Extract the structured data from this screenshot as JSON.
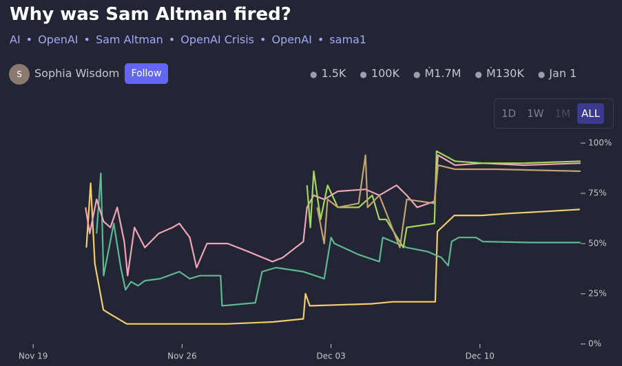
{
  "header": {
    "title": "Why was Sam Altman fired?",
    "tags": [
      "AI",
      "OpenAI",
      "Sam Altman",
      "OpenAI Crisis",
      "OpenAI",
      "sama1"
    ],
    "author": "Sophia Wisdom",
    "avatar": "S",
    "follow": "Follow",
    "stats": [
      "1.5K",
      "100K",
      "Ṁ1.7M",
      "Ṁ130K",
      "Jan 1"
    ]
  },
  "ranges": [
    "1D",
    "1W",
    "1M",
    "ALL"
  ],
  "chart_data": {
    "type": "line",
    "grid": false,
    "xlim": [
      -1.56,
      25.8
    ],
    "xticks": [
      {
        "value": 0,
        "label": "Nov 19"
      },
      {
        "value": 7,
        "label": "Nov 26"
      },
      {
        "value": 14,
        "label": "Dec 03"
      },
      {
        "value": 21,
        "label": "Dec 10"
      }
    ],
    "ylim": [
      0,
      100
    ],
    "yticks": [
      {
        "value": 0,
        "label": "0%"
      },
      {
        "value": 25,
        "label": "25%"
      },
      {
        "value": 50,
        "label": "50%"
      },
      {
        "value": 75,
        "label": "75%"
      },
      {
        "value": 100,
        "label": "100%"
      }
    ],
    "series": [
      {
        "color": "#f5cd6b",
        "x": [
          2.5,
          2.7,
          2.9,
          3.3,
          3.6,
          4.4,
          7.0,
          9.1,
          11.3,
          12.7,
          12.8,
          13.0,
          15.9,
          16.9,
          18.9,
          19.0,
          19.8,
          21.1,
          22.4,
          24.1,
          25.7
        ],
        "values": [
          48,
          80,
          40,
          17,
          15,
          10,
          10,
          10,
          11,
          12.5,
          25,
          19,
          20,
          21,
          21,
          56,
          64,
          64,
          65,
          66,
          67
        ]
      },
      {
        "color": "#5fb893",
        "x": [
          2.98,
          3.18,
          3.31,
          3.79,
          4.12,
          4.34,
          4.6,
          4.93,
          5.25,
          5.96,
          6.87,
          7.36,
          7.84,
          8.81,
          8.88,
          10.44,
          10.76,
          11.41,
          12.7,
          13.68,
          14.0,
          14.16,
          15.3,
          16.27,
          16.43,
          17.56,
          18.54,
          19.19,
          19.51,
          19.67,
          20.0,
          20.81,
          21.13,
          23.4,
          25.73
        ],
        "values": [
          55,
          85,
          34,
          60,
          38,
          27,
          31,
          29,
          31.5,
          32.5,
          36,
          32.5,
          34,
          34,
          19,
          20.5,
          36,
          38,
          36,
          32.5,
          53,
          50,
          44.5,
          41,
          53,
          48,
          46,
          43,
          39,
          51,
          53,
          53,
          51,
          50.5,
          50.5
        ]
      },
      {
        "color": "#f2a5b8",
        "x": [
          2.46,
          2.66,
          2.98,
          3.31,
          3.63,
          3.95,
          4.28,
          4.44,
          4.76,
          5.25,
          5.9,
          6.55,
          6.87,
          7.36,
          7.68,
          8.17,
          9.14,
          10.11,
          11.25,
          11.73,
          12.7,
          12.87,
          13.19,
          13.68,
          14.32,
          15.62,
          16.27,
          17.08,
          17.56,
          18.05,
          18.86,
          19.03,
          19.83,
          21.13,
          23.07,
          25.73
        ],
        "values": [
          68,
          55,
          72,
          61,
          58,
          68,
          51,
          34,
          58,
          48,
          55,
          58,
          60,
          53,
          38,
          50,
          50,
          46,
          41,
          43,
          51,
          68,
          74,
          72,
          76,
          77,
          74,
          79,
          74,
          68,
          71,
          94,
          89,
          90,
          89,
          90
        ]
      },
      {
        "color": "#a6d85a",
        "x": [
          12.87,
          13.03,
          13.19,
          13.51,
          13.84,
          14.32,
          15.3,
          15.94,
          16.27,
          16.59,
          17.4,
          17.56,
          18.86,
          18.96,
          19.83,
          21.13,
          23.07,
          25.73
        ],
        "values": [
          79,
          58,
          86,
          62,
          79,
          68,
          68,
          74,
          62,
          62,
          48,
          58,
          60,
          96,
          91,
          90,
          90,
          91
        ]
      },
      {
        "color": "#c4a373",
        "x": [
          13.35,
          13.68,
          13.84,
          14.32,
          15.3,
          15.62,
          15.72,
          16.27,
          17.24,
          17.56,
          18.86,
          19.03,
          19.83,
          21.78,
          25.73
        ],
        "values": [
          68,
          50,
          72,
          68,
          70,
          94,
          68,
          74,
          48,
          72,
          70,
          89,
          87,
          87,
          86
        ]
      }
    ]
  }
}
